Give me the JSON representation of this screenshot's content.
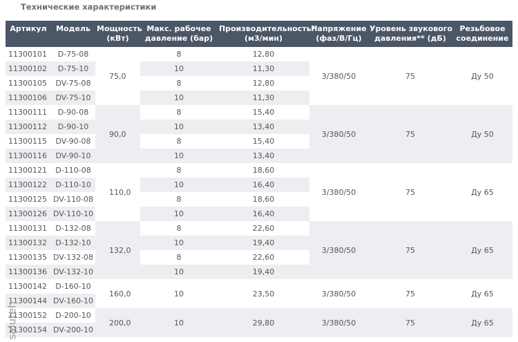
{
  "header": {
    "title": "Технические характеристики"
  },
  "watermark": "saluteh",
  "table": {
    "columns": [
      [
        "Артикул"
      ],
      [
        "Модель"
      ],
      [
        "Мощность",
        "(кВт)"
      ],
      [
        "Макс. рабочее",
        "давление (бар)"
      ],
      [
        "Производительность*",
        "(м3/мин)"
      ],
      [
        "Напряжение",
        "(фаз/В/Гц)"
      ],
      [
        "Уровень звукового",
        "давления** (дБ)"
      ],
      [
        "Резьбовое",
        "соединение"
      ]
    ],
    "groups": [
      {
        "power": "75,0",
        "voltage": "3/380/50",
        "noise": "75",
        "thread": "Ду 50",
        "rows": [
          {
            "article": "11300101",
            "model": "D-75-08",
            "pressure": "8",
            "capacity": "12,80"
          },
          {
            "article": "11300102",
            "model": "D-75-10",
            "pressure": "10",
            "capacity": "11,30"
          },
          {
            "article": "11300105",
            "model": "DV-75-08",
            "pressure": "8",
            "capacity": "12,80"
          },
          {
            "article": "11300106",
            "model": "DV-75-10",
            "pressure": "10",
            "capacity": "11,30"
          }
        ]
      },
      {
        "power": "90,0",
        "voltage": "3/380/50",
        "noise": "75",
        "thread": "Ду 50",
        "rows": [
          {
            "article": "11300111",
            "model": "D-90-08",
            "pressure": "8",
            "capacity": "15,40"
          },
          {
            "article": "11300112",
            "model": "D-90-10",
            "pressure": "10",
            "capacity": "13,40"
          },
          {
            "article": "11300115",
            "model": "DV-90-08",
            "pressure": "8",
            "capacity": "15,40"
          },
          {
            "article": "11300116",
            "model": "DV-90-10",
            "pressure": "10",
            "capacity": "13,40"
          }
        ]
      },
      {
        "power": "110,0",
        "voltage": "3/380/50",
        "noise": "75",
        "thread": "Ду 65",
        "rows": [
          {
            "article": "11300121",
            "model": "D-110-08",
            "pressure": "8",
            "capacity": "18,60"
          },
          {
            "article": "11300122",
            "model": "D-110-10",
            "pressure": "10",
            "capacity": "16,40"
          },
          {
            "article": "11300125",
            "model": "DV-110-08",
            "pressure": "8",
            "capacity": "18,60"
          },
          {
            "article": "11300126",
            "model": "DV-110-10",
            "pressure": "10",
            "capacity": "16,40"
          }
        ]
      },
      {
        "power": "132,0",
        "voltage": "3/380/50",
        "noise": "75",
        "thread": "Ду 65",
        "rows": [
          {
            "article": "11300131",
            "model": "D-132-08",
            "pressure": "8",
            "capacity": "22,60"
          },
          {
            "article": "11300132",
            "model": "D-132-10",
            "pressure": "10",
            "capacity": "19,40"
          },
          {
            "article": "11300135",
            "model": "DV-132-08",
            "pressure": "8",
            "capacity": "22,60"
          },
          {
            "article": "11300136",
            "model": "DV-132-10",
            "pressure": "10",
            "capacity": "19,40"
          }
        ]
      },
      {
        "power": "160,0",
        "pressure": "10",
        "capacity": "23,50",
        "voltage": "3/380/50",
        "noise": "75",
        "thread": "Ду 65",
        "rows": [
          {
            "article": "11300142",
            "model": "D-160-10"
          },
          {
            "article": "11300144",
            "model": "DV-160-10"
          }
        ]
      },
      {
        "power": "200,0",
        "pressure": "10",
        "capacity": "29,80",
        "voltage": "3/380/50",
        "noise": "75",
        "thread": "Ду 65",
        "rows": [
          {
            "article": "11300152",
            "model": "D-200-10"
          },
          {
            "article": "11300154",
            "model": "DV-200-10"
          }
        ]
      }
    ]
  }
}
